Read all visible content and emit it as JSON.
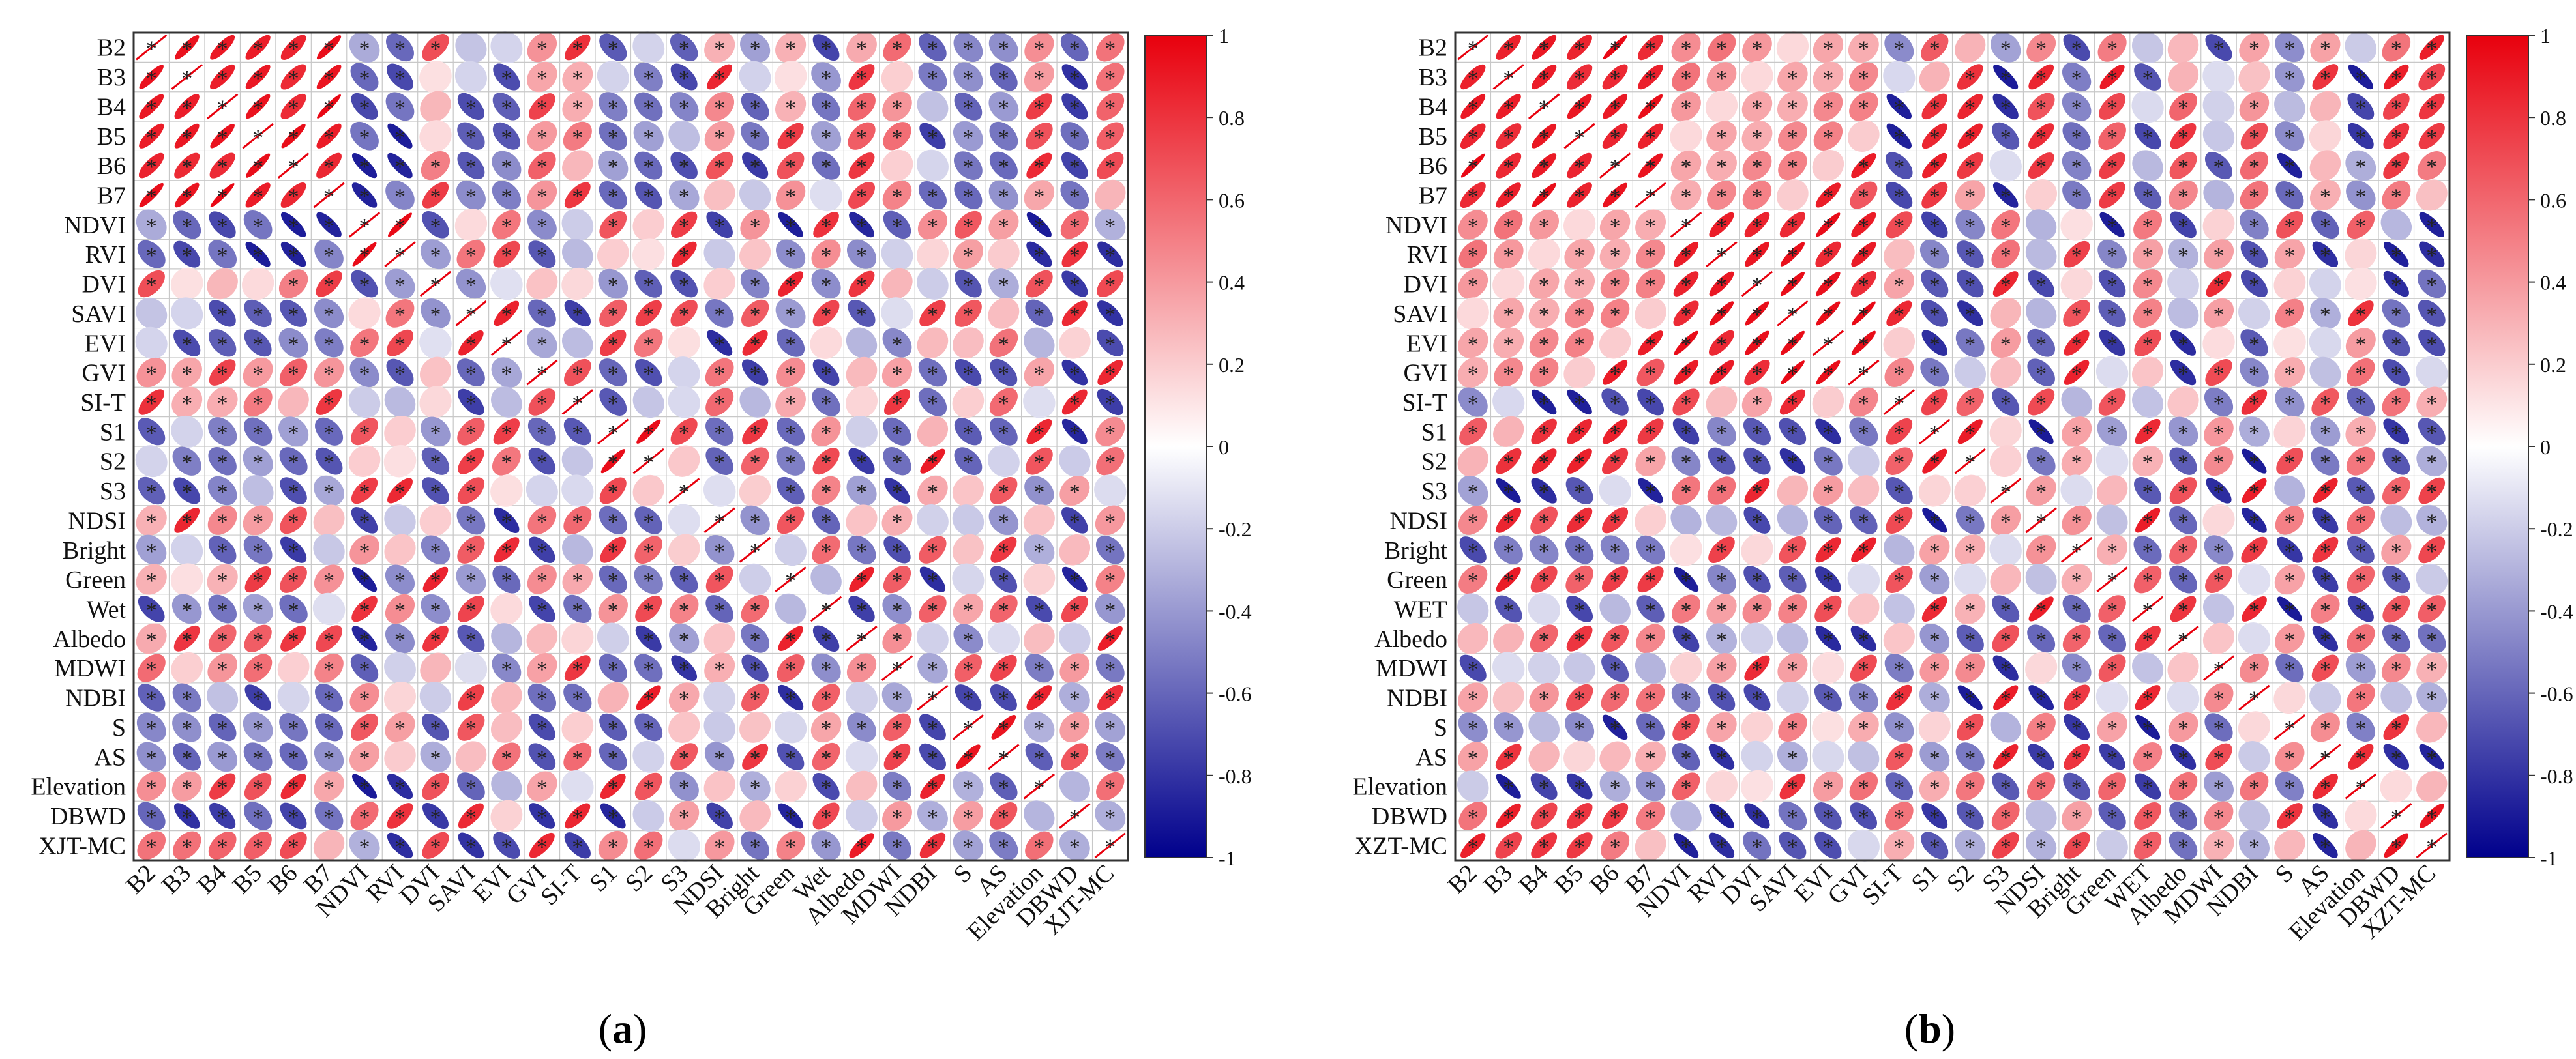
{
  "figure": {
    "panels": [
      {
        "label": "(a)",
        "label_letter": "a",
        "site": "XJT-MC"
      },
      {
        "label": "(b)",
        "label_letter": "b",
        "site": "XZT-MC"
      }
    ]
  },
  "colors": {
    "positive": "#e8000d",
    "negative": "#00008c",
    "neutral": "#ffffff",
    "grid": "#c8c8c8",
    "frame": "#333333"
  },
  "chart_data": [
    {
      "type": "heatmap",
      "subtype": "correlation-ellipse-matrix",
      "panel": "(a)",
      "title": "",
      "xlabel": "",
      "ylabel": "",
      "variables": [
        "B2",
        "B3",
        "B4",
        "B5",
        "B6",
        "B7",
        "NDVI",
        "RVI",
        "DVI",
        "SAVI",
        "EVI",
        "GVI",
        "SI-T",
        "S1",
        "S2",
        "S3",
        "NDSI",
        "Bright",
        "Green",
        "Wet",
        "Albedo",
        "MDWI",
        "NDBI",
        "S",
        "AS",
        "Elevation",
        "DBWD",
        "XJT-MC"
      ],
      "colorbar": {
        "range": [
          -1,
          1
        ],
        "ticks": [
          1,
          0.8,
          0.6,
          0.4,
          0.2,
          0,
          -0.2,
          -0.4,
          -0.6,
          -0.8,
          -1
        ]
      },
      "significance_marker": "*",
      "group_signs": [
        [
          1,
          -1,
          1,
          -1,
          1,
          1,
          -1,
          -1,
          1,
          -1,
          1,
          -1,
          1,
          1,
          -1
        ],
        [
          -1,
          1,
          -1,
          1,
          -1,
          -1,
          1,
          1,
          -1,
          1,
          -1,
          1,
          -1,
          -1,
          1
        ],
        [
          1,
          -1,
          1,
          -1,
          1,
          1,
          -1,
          -1,
          1,
          -1,
          1,
          -1,
          1,
          1,
          -1
        ],
        [
          -1,
          1,
          -1,
          1,
          -1,
          -1,
          1,
          1,
          -1,
          1,
          -1,
          1,
          -1,
          -1,
          1
        ],
        [
          1,
          -1,
          1,
          -1,
          1,
          1,
          -1,
          -1,
          1,
          -1,
          1,
          -1,
          1,
          1,
          -1
        ],
        [
          1,
          -1,
          1,
          -1,
          1,
          1,
          -1,
          -1,
          1,
          -1,
          1,
          -1,
          1,
          1,
          -1
        ],
        [
          -1,
          1,
          -1,
          1,
          -1,
          -1,
          1,
          1,
          -1,
          1,
          -1,
          1,
          -1,
          -1,
          1
        ],
        [
          -1,
          1,
          -1,
          1,
          -1,
          -1,
          1,
          1,
          -1,
          1,
          -1,
          1,
          -1,
          -1,
          1
        ],
        [
          1,
          -1,
          1,
          -1,
          1,
          1,
          -1,
          -1,
          1,
          -1,
          1,
          -1,
          1,
          1,
          -1
        ],
        [
          -1,
          1,
          -1,
          1,
          -1,
          -1,
          1,
          1,
          -1,
          1,
          -1,
          1,
          -1,
          -1,
          1
        ],
        [
          1,
          -1,
          1,
          -1,
          1,
          1,
          -1,
          -1,
          1,
          -1,
          1,
          -1,
          1,
          1,
          -1
        ],
        [
          -1,
          1,
          -1,
          1,
          -1,
          -1,
          1,
          1,
          -1,
          1,
          -1,
          1,
          -1,
          -1,
          1
        ],
        [
          1,
          -1,
          1,
          -1,
          1,
          1,
          -1,
          -1,
          1,
          -1,
          1,
          -1,
          1,
          1,
          -1
        ],
        [
          1,
          -1,
          1,
          -1,
          1,
          1,
          -1,
          -1,
          1,
          -1,
          1,
          -1,
          1,
          1,
          -1
        ],
        [
          -1,
          1,
          -1,
          1,
          -1,
          -1,
          1,
          1,
          -1,
          1,
          -1,
          1,
          -1,
          -1,
          1
        ]
      ],
      "groups": [
        0,
        0,
        0,
        0,
        0,
        0,
        1,
        1,
        2,
        3,
        3,
        4,
        5,
        6,
        6,
        7,
        8,
        9,
        10,
        11,
        12,
        13,
        14,
        15,
        15,
        16,
        17,
        18
      ]
    },
    {
      "type": "heatmap",
      "subtype": "correlation-ellipse-matrix",
      "panel": "(b)",
      "title": "",
      "xlabel": "",
      "ylabel": "",
      "variables": [
        "B2",
        "B3",
        "B4",
        "B5",
        "B6",
        "B7",
        "NDVI",
        "RVI",
        "DVI",
        "SAVI",
        "EVI",
        "GVI",
        "SI-T",
        "S1",
        "S2",
        "S3",
        "NDSI",
        "Bright",
        "Green",
        "WET",
        "Albedo",
        "MDWI",
        "NDBI",
        "S",
        "AS",
        "Elevation",
        "DBWD",
        "XZT-MC"
      ],
      "colorbar": {
        "range": [
          -1,
          1
        ],
        "ticks": [
          1,
          0.8,
          0.6,
          0.4,
          0.2,
          0,
          -0.2,
          -0.4,
          -0.6,
          -0.8,
          -1
        ]
      },
      "significance_marker": "*",
      "groups": [
        0,
        0,
        0,
        0,
        0,
        0,
        1,
        1,
        1,
        1,
        1,
        1,
        2,
        3,
        3,
        4,
        5,
        6,
        7,
        8,
        9,
        10,
        11,
        12,
        13,
        14,
        15,
        15
      ]
    }
  ]
}
